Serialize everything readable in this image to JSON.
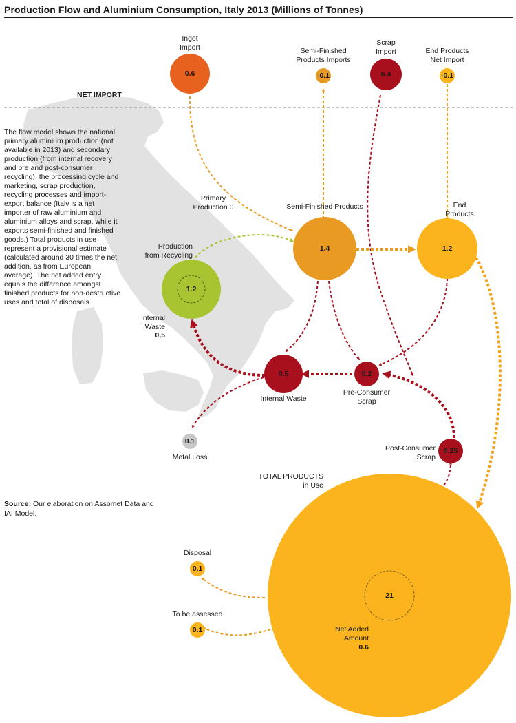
{
  "title": "Production Flow and Aluminium Consumption, Italy 2013 (Millions of Tonnes)",
  "net_import_label": "NET IMPORT",
  "description": "The flow model shows the national primary aluminium production (not available in 2013) and secondary production (from internal recovery and pre and post-consumer recycling), the processing cycle and marketing, scrap production, recycling processes and import-export balance (Italy is a net importer of raw aluminium and aluminium alloys and scrap, while it exports semi-finished and finished goods.) Total products in use represent a provisional estimate (calculated around 30 times the net addition, as from European average). The net added entry equals the difference amongst finished products for non-destructive uses and total of disposals.",
  "source": {
    "label": "Source:",
    "text": "Our elaboration on Assomet Data and IAI Model."
  },
  "colors": {
    "dark_orange": "#e8621f",
    "orange": "#e99a22",
    "yellow": "#fbb41d",
    "green": "#a8c430",
    "dark_red": "#a8101e",
    "grey": "#c8c8c8",
    "map": "#e2e2e2"
  },
  "nodes": {
    "ingot_import": {
      "label": "Ingot\nImport",
      "value": "0.6"
    },
    "semi_finished_imports": {
      "label": "Semi-Finished\nProducts Imports",
      "value": "-0.1"
    },
    "scrap_import": {
      "label": "Scrap\nImport",
      "value": "0.4"
    },
    "end_products_net_import": {
      "label": "End Products\nNet Import",
      "value": "-0.1"
    },
    "primary_production": {
      "label": "Primary\nProduction 0"
    },
    "semi_finished_products": {
      "label": "Semi-Finished Products",
      "value": "1.4"
    },
    "end_products": {
      "label": "End\nProducts",
      "value": "1.2"
    },
    "production_from_recycling": {
      "label": "Production\nfrom Recycling",
      "value": "1.2",
      "internal_label": "Internal\nWaste",
      "internal_value": "0,5"
    },
    "internal_waste": {
      "label": "Internal Waste",
      "value": "0.5"
    },
    "pre_consumer_scrap": {
      "label": "Pre-Consumer\nScrap",
      "value": "0.2"
    },
    "post_consumer_scrap": {
      "label": "Post-Consumer\nScrap",
      "value": "0.25"
    },
    "metal_loss": {
      "label": "Metal Loss",
      "value": "0.1"
    },
    "total_products_in_use": {
      "label": "TOTAL PRODUCTS\nin Use",
      "value": "21",
      "net_label": "Net Added\nAmount",
      "net_value": "0.6"
    },
    "disposal": {
      "label": "Disposal",
      "value": "0.1"
    },
    "to_be_assessed": {
      "label": "To be assessed",
      "value": "0.1"
    }
  }
}
